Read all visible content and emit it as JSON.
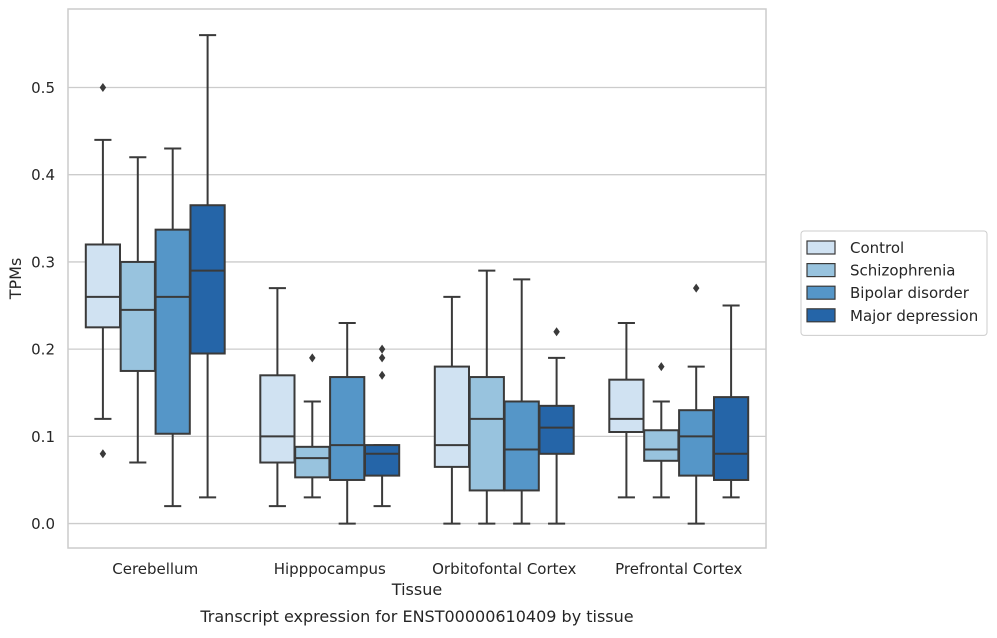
{
  "chart_data": {
    "type": "boxplot",
    "xlabel": "Tissue",
    "ylabel": "TPMs",
    "caption": "Transcript expression for ENST00000610409 by tissue",
    "ylim": [
      -0.028,
      0.59
    ],
    "yticks": [
      "0.0",
      "0.1",
      "0.2",
      "0.3",
      "0.4",
      "0.5"
    ],
    "grid": true,
    "legend_position": "right",
    "categories": [
      "Cerebellum",
      "Hipppocampus",
      "Orbitofontal Cortex",
      "Prefrontal Cortex"
    ],
    "series": [
      {
        "name": "Control",
        "color": "#d0e2f2",
        "boxes": [
          {
            "whisker_low": 0.12,
            "q1": 0.225,
            "median": 0.26,
            "q3": 0.32,
            "whisker_high": 0.44,
            "outliers": [
              0.5,
              0.08
            ]
          },
          {
            "whisker_low": 0.02,
            "q1": 0.07,
            "median": 0.1,
            "q3": 0.17,
            "whisker_high": 0.27,
            "outliers": []
          },
          {
            "whisker_low": 0.0,
            "q1": 0.065,
            "median": 0.09,
            "q3": 0.18,
            "whisker_high": 0.26,
            "outliers": []
          },
          {
            "whisker_low": 0.03,
            "q1": 0.105,
            "median": 0.12,
            "q3": 0.165,
            "whisker_high": 0.23,
            "outliers": []
          }
        ]
      },
      {
        "name": "Schizophrenia",
        "color": "#98c3de",
        "boxes": [
          {
            "whisker_low": 0.07,
            "q1": 0.175,
            "median": 0.245,
            "q3": 0.3,
            "whisker_high": 0.42,
            "outliers": []
          },
          {
            "whisker_low": 0.03,
            "q1": 0.053,
            "median": 0.075,
            "q3": 0.088,
            "whisker_high": 0.14,
            "outliers": [
              0.19
            ]
          },
          {
            "whisker_low": 0.0,
            "q1": 0.038,
            "median": 0.12,
            "q3": 0.168,
            "whisker_high": 0.29,
            "outliers": []
          },
          {
            "whisker_low": 0.03,
            "q1": 0.072,
            "median": 0.085,
            "q3": 0.107,
            "whisker_high": 0.14,
            "outliers": [
              0.18
            ]
          }
        ]
      },
      {
        "name": "Bipolar disorder",
        "color": "#5596c8",
        "boxes": [
          {
            "whisker_low": 0.02,
            "q1": 0.103,
            "median": 0.26,
            "q3": 0.337,
            "whisker_high": 0.43,
            "outliers": []
          },
          {
            "whisker_low": 0.0,
            "q1": 0.05,
            "median": 0.09,
            "q3": 0.168,
            "whisker_high": 0.23,
            "outliers": []
          },
          {
            "whisker_low": 0.0,
            "q1": 0.038,
            "median": 0.085,
            "q3": 0.14,
            "whisker_high": 0.28,
            "outliers": []
          },
          {
            "whisker_low": 0.0,
            "q1": 0.055,
            "median": 0.1,
            "q3": 0.13,
            "whisker_high": 0.18,
            "outliers": [
              0.27
            ]
          }
        ]
      },
      {
        "name": "Major depression",
        "color": "#2565a8",
        "boxes": [
          {
            "whisker_low": 0.03,
            "q1": 0.195,
            "median": 0.29,
            "q3": 0.365,
            "whisker_high": 0.56,
            "outliers": []
          },
          {
            "whisker_low": 0.02,
            "q1": 0.055,
            "median": 0.08,
            "q3": 0.09,
            "whisker_high": 0.09,
            "outliers": [
              0.2,
              0.19,
              0.17
            ]
          },
          {
            "whisker_low": 0.0,
            "q1": 0.08,
            "median": 0.11,
            "q3": 0.135,
            "whisker_high": 0.19,
            "outliers": [
              0.22
            ]
          },
          {
            "whisker_low": 0.03,
            "q1": 0.05,
            "median": 0.08,
            "q3": 0.145,
            "whisker_high": 0.25,
            "outliers": []
          }
        ]
      }
    ]
  }
}
